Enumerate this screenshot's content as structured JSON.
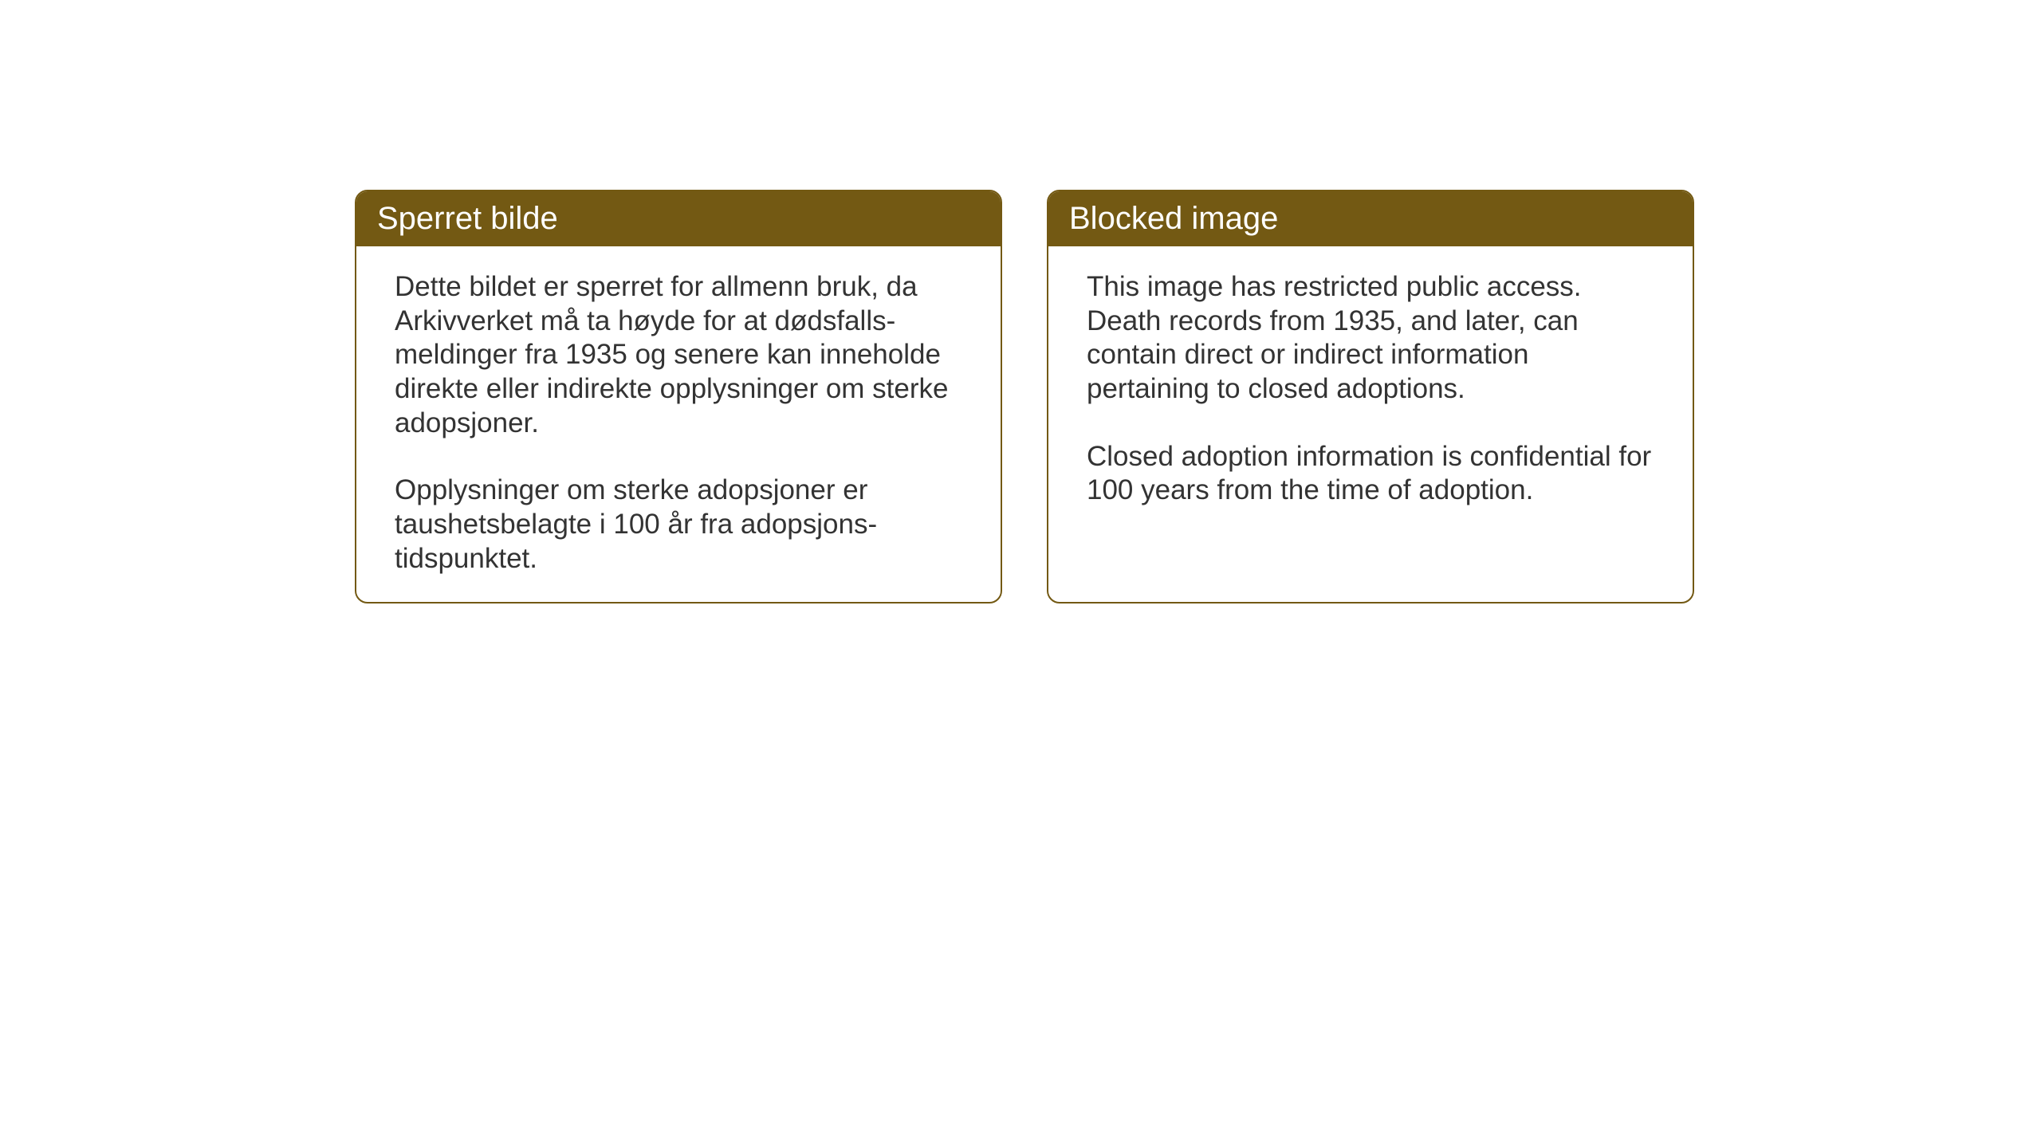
{
  "notices": {
    "norwegian": {
      "title": "Sperret bilde",
      "paragraph1": "Dette bildet er sperret for allmenn bruk, da Arkivverket må ta høyde for at dødsfalls-meldinger fra 1935 og senere kan inneholde direkte eller indirekte opplysninger om sterke adopsjoner.",
      "paragraph2": "Opplysninger om sterke adopsjoner er taushetsbelagte i 100 år fra adopsjons-tidspunktet."
    },
    "english": {
      "title": "Blocked image",
      "paragraph1": "This image has restricted public access. Death records from 1935, and later, can contain direct or indirect information pertaining to closed adoptions.",
      "paragraph2": "Closed adoption information is confidential for 100 years from the time of adoption."
    }
  },
  "styling": {
    "header_bg_color": "#735913",
    "header_text_color": "#ffffff",
    "border_color": "#735913",
    "body_text_color": "#333333",
    "background_color": "#ffffff",
    "title_fontsize": 40,
    "body_fontsize": 35,
    "border_radius": 16,
    "border_width": 2
  }
}
